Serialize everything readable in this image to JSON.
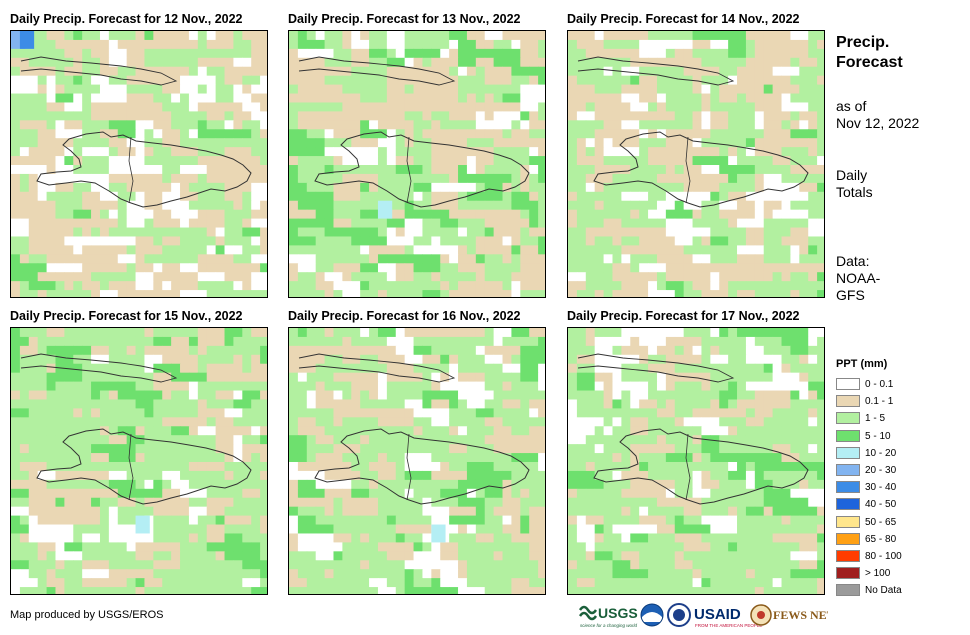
{
  "panels": [
    {
      "title": "Daily Precip. Forecast for 12 Nov., 2022"
    },
    {
      "title": "Daily Precip. Forecast for 13 Nov., 2022"
    },
    {
      "title": "Daily Precip. Forecast for 14 Nov., 2022"
    },
    {
      "title": "Daily Precip. Forecast for 15 Nov., 2022"
    },
    {
      "title": "Daily Precip. Forecast for 16 Nov., 2022"
    },
    {
      "title": "Daily Precip. Forecast for 17 Nov., 2022"
    }
  ],
  "side": {
    "title_line1": "Precip.",
    "title_line2": "Forecast",
    "asof_line1": "as of",
    "asof_line2": "Nov 12, 2022",
    "daily_line1": "Daily",
    "daily_line2": "Totals",
    "data_line1": "Data:",
    "data_line2": "NOAA-",
    "data_line3": "GFS"
  },
  "legend": {
    "title": "PPT (mm)",
    "items": [
      {
        "label": "0 - 0.1",
        "color": "#ffffff"
      },
      {
        "label": "0.1 - 1",
        "color": "#ead7b4"
      },
      {
        "label": "1 - 5",
        "color": "#b2f0a0"
      },
      {
        "label": "5 - 10",
        "color": "#6ee06e"
      },
      {
        "label": "10 - 20",
        "color": "#b4eef4"
      },
      {
        "label": "20 - 30",
        "color": "#82b4f0"
      },
      {
        "label": "30 - 40",
        "color": "#3c8ce6"
      },
      {
        "label": "40 - 50",
        "color": "#1e64dc"
      },
      {
        "label": "50 - 65",
        "color": "#ffe68c"
      },
      {
        "label": "65 - 80",
        "color": "#ffa014"
      },
      {
        "label": "80 - 100",
        "color": "#ff3c00"
      },
      {
        "label": "> 100",
        "color": "#a01e1e"
      },
      {
        "label": "No Data",
        "color": "#9b9b9b"
      }
    ]
  },
  "credit": "Map produced by USGS/EROS",
  "logos": {
    "usgs": "USGS",
    "usgs_tag": "science for a changing world",
    "usaid": "USAID",
    "usaid_tag": "FROM THE AMERICAN PEOPLE",
    "fewsnet": "FEWS NET"
  }
}
